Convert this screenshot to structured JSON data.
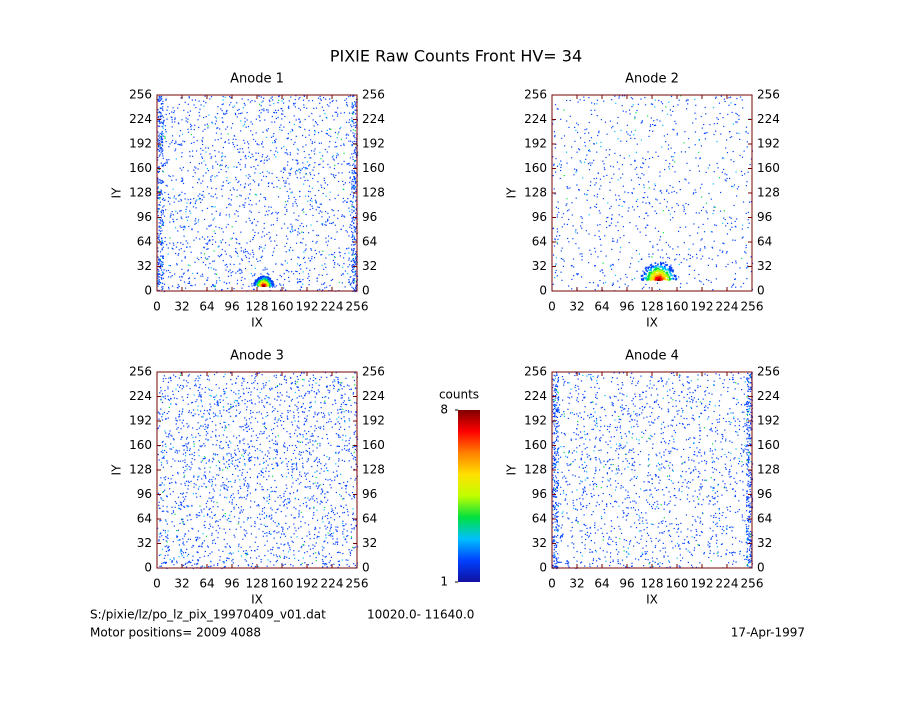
{
  "title": "PIXIE Raw Counts Front HV= 34",
  "chart_data": [
    {
      "type": "heatmap",
      "title": "Anode 1",
      "xlabel": "IX",
      "ylabel": "IY",
      "xlim": [
        0,
        256
      ],
      "ylim": [
        0,
        256
      ],
      "xticks": [
        0,
        32,
        64,
        96,
        128,
        160,
        192,
        224,
        256
      ],
      "yticks": [
        0,
        32,
        64,
        96,
        128,
        160,
        192,
        224,
        256
      ]
    },
    {
      "type": "heatmap",
      "title": "Anode 2",
      "xlabel": "IX",
      "ylabel": "IY",
      "xlim": [
        0,
        256
      ],
      "ylim": [
        0,
        256
      ],
      "xticks": [
        0,
        32,
        64,
        96,
        128,
        160,
        192,
        224,
        256
      ],
      "yticks": [
        0,
        32,
        64,
        96,
        128,
        160,
        192,
        224,
        256
      ]
    },
    {
      "type": "heatmap",
      "title": "Anode 3",
      "xlabel": "IX",
      "ylabel": "IY",
      "xlim": [
        0,
        256
      ],
      "ylim": [
        0,
        256
      ],
      "xticks": [
        0,
        32,
        64,
        96,
        128,
        160,
        192,
        224,
        256
      ],
      "yticks": [
        0,
        32,
        64,
        96,
        128,
        160,
        192,
        224,
        256
      ]
    },
    {
      "type": "heatmap",
      "title": "Anode 4",
      "xlabel": "IX",
      "ylabel": "IY",
      "xlim": [
        0,
        256
      ],
      "ylim": [
        0,
        256
      ],
      "xticks": [
        0,
        32,
        64,
        96,
        128,
        160,
        192,
        224,
        256
      ],
      "yticks": [
        0,
        32,
        64,
        96,
        128,
        160,
        192,
        224,
        256
      ]
    }
  ],
  "colorbar": {
    "label": "counts",
    "lim": [
      1,
      8
    ],
    "ticks": [
      1,
      8
    ],
    "colormap": [
      "#1010a0",
      "#0040ff",
      "#00c0ff",
      "#00e040",
      "#c0ff00",
      "#ffe000",
      "#ff8000",
      "#ff0000",
      "#800000"
    ]
  },
  "footer": {
    "file": "S:/pixie/lz/po_lz_pix_19970409_v01.dat",
    "range": "10020.0- 11640.0",
    "motor": "Motor positions= 2009 4088",
    "date": "17-Apr-1997"
  }
}
